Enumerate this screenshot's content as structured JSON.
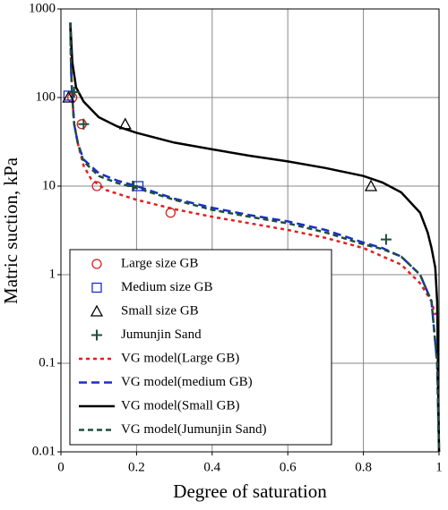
{
  "chart_data": {
    "type": "line",
    "xlabel": "Degree of saturation",
    "ylabel": "Matric suction, kPa",
    "xlim": [
      0,
      1
    ],
    "xticks": [
      0,
      0.2,
      0.4,
      0.6,
      0.8,
      1
    ],
    "ylim": [
      0.01,
      1000
    ],
    "yticks": [
      0.01,
      0.1,
      1,
      10,
      100,
      1000
    ],
    "log_y": true,
    "grid": true,
    "legend": "lower left",
    "series": [
      {
        "name": "Large size GB",
        "type": "scatter",
        "marker": "circle",
        "color": "#d42020",
        "x": [
          0.03,
          0.055,
          0.095,
          0.29
        ],
        "values": [
          100,
          50,
          10,
          5
        ]
      },
      {
        "name": "Medium size GB",
        "type": "scatter",
        "marker": "square",
        "color": "#1a2ecc",
        "x": [
          0.02,
          0.205
        ],
        "values": [
          105,
          10
        ]
      },
      {
        "name": "Small size GB",
        "type": "scatter",
        "marker": "triangle",
        "color": "#000000",
        "x": [
          0.02,
          0.17,
          0.82
        ],
        "values": [
          100,
          50,
          10
        ]
      },
      {
        "name": "Jumunjin Sand",
        "type": "scatter",
        "marker": "plus",
        "color": "#1e4e3c",
        "x": [
          0.035,
          0.06,
          0.19,
          0.86
        ],
        "values": [
          115,
          50,
          10,
          2.5
        ]
      },
      {
        "name": "VG model(Large GB)",
        "type": "line",
        "dash": "dotted",
        "color": "#e02020",
        "x": [
          0.025,
          0.027,
          0.03,
          0.035,
          0.045,
          0.06,
          0.08,
          0.12,
          0.2,
          0.3,
          0.4,
          0.5,
          0.6,
          0.7,
          0.8,
          0.9,
          0.95,
          0.98,
          0.99
        ],
        "values": [
          600,
          200,
          100,
          50,
          30,
          17,
          12,
          9,
          7,
          5.5,
          4.5,
          3.8,
          3.2,
          2.6,
          2.0,
          1.3,
          0.8,
          0.5,
          0.35
        ]
      },
      {
        "name": "VG model(medium GB)",
        "type": "line",
        "dash": "dashed",
        "color": "#1a2ecc",
        "x": [
          0.025,
          0.027,
          0.03,
          0.035,
          0.045,
          0.06,
          0.1,
          0.15,
          0.2,
          0.3,
          0.4,
          0.5,
          0.6,
          0.7,
          0.8,
          0.85,
          0.9,
          0.95,
          0.98,
          0.995,
          1.0
        ],
        "values": [
          700,
          200,
          100,
          50,
          30,
          20,
          14,
          11.5,
          10,
          7.2,
          5.7,
          4.7,
          4,
          3.2,
          2.3,
          2.0,
          1.6,
          1.0,
          0.5,
          0.1,
          0.01
        ]
      },
      {
        "name": "VG model(Small GB)",
        "type": "line",
        "dash": "solid",
        "color": "#000000",
        "x": [
          0.025,
          0.03,
          0.04,
          0.06,
          0.1,
          0.15,
          0.2,
          0.3,
          0.4,
          0.5,
          0.6,
          0.7,
          0.8,
          0.85,
          0.9,
          0.95,
          0.97,
          0.98,
          0.99,
          0.995,
          1.0
        ],
        "values": [
          700,
          250,
          130,
          90,
          60,
          47,
          40,
          31,
          26,
          22,
          19,
          16,
          13,
          11,
          8.5,
          5,
          3,
          2,
          1.2,
          0.5,
          0.01
        ]
      },
      {
        "name": "VG model(Jumunjin Sand)",
        "type": "line",
        "dash": "short-dashed",
        "color": "#1e4e3c",
        "x": [
          0.025,
          0.027,
          0.03,
          0.035,
          0.045,
          0.06,
          0.1,
          0.15,
          0.2,
          0.3,
          0.4,
          0.5,
          0.6,
          0.7,
          0.8,
          0.85,
          0.9,
          0.95,
          0.98,
          0.995,
          1.0
        ],
        "values": [
          700,
          200,
          100,
          50,
          30,
          19,
          13,
          10.8,
          9.5,
          7,
          5.4,
          4.5,
          3.8,
          3.0,
          2.2,
          1.95,
          1.6,
          1.0,
          0.5,
          0.1,
          0.01
        ]
      }
    ]
  }
}
